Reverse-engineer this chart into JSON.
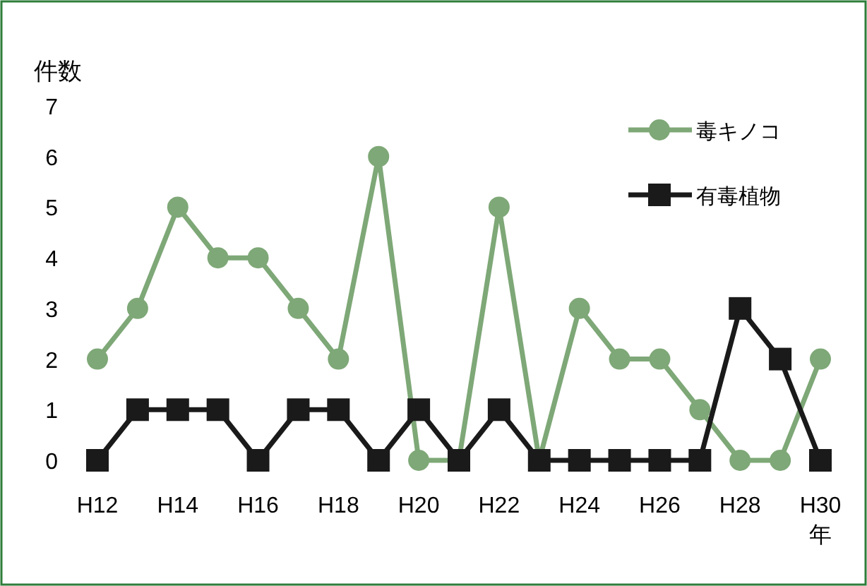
{
  "chart_data": {
    "type": "line",
    "ylabel": "件数",
    "xlabel": "年",
    "categories": [
      "H12",
      null,
      "H14",
      null,
      "H16",
      null,
      "H18",
      null,
      "H20",
      null,
      "H22",
      null,
      "H24",
      null,
      "H26",
      null,
      "H28",
      null,
      "H30"
    ],
    "series": [
      {
        "name": "毒キノコ",
        "color": "#7ea877",
        "marker": "circle",
        "values": [
          2,
          3,
          5,
          4,
          4,
          3,
          2,
          6,
          0,
          0,
          5,
          0,
          3,
          2,
          2,
          1,
          0,
          0,
          2
        ]
      },
      {
        "name": "有毒植物",
        "color": "#1a1a1a",
        "marker": "square",
        "values": [
          0,
          1,
          1,
          1,
          0,
          1,
          1,
          0,
          1,
          0,
          1,
          0,
          0,
          0,
          0,
          0,
          3,
          2,
          0
        ]
      }
    ],
    "ylim": [
      0,
      7
    ],
    "yticks": [
      0,
      1,
      2,
      3,
      4,
      5,
      6,
      7
    ],
    "grid": false,
    "legend": "top right"
  }
}
